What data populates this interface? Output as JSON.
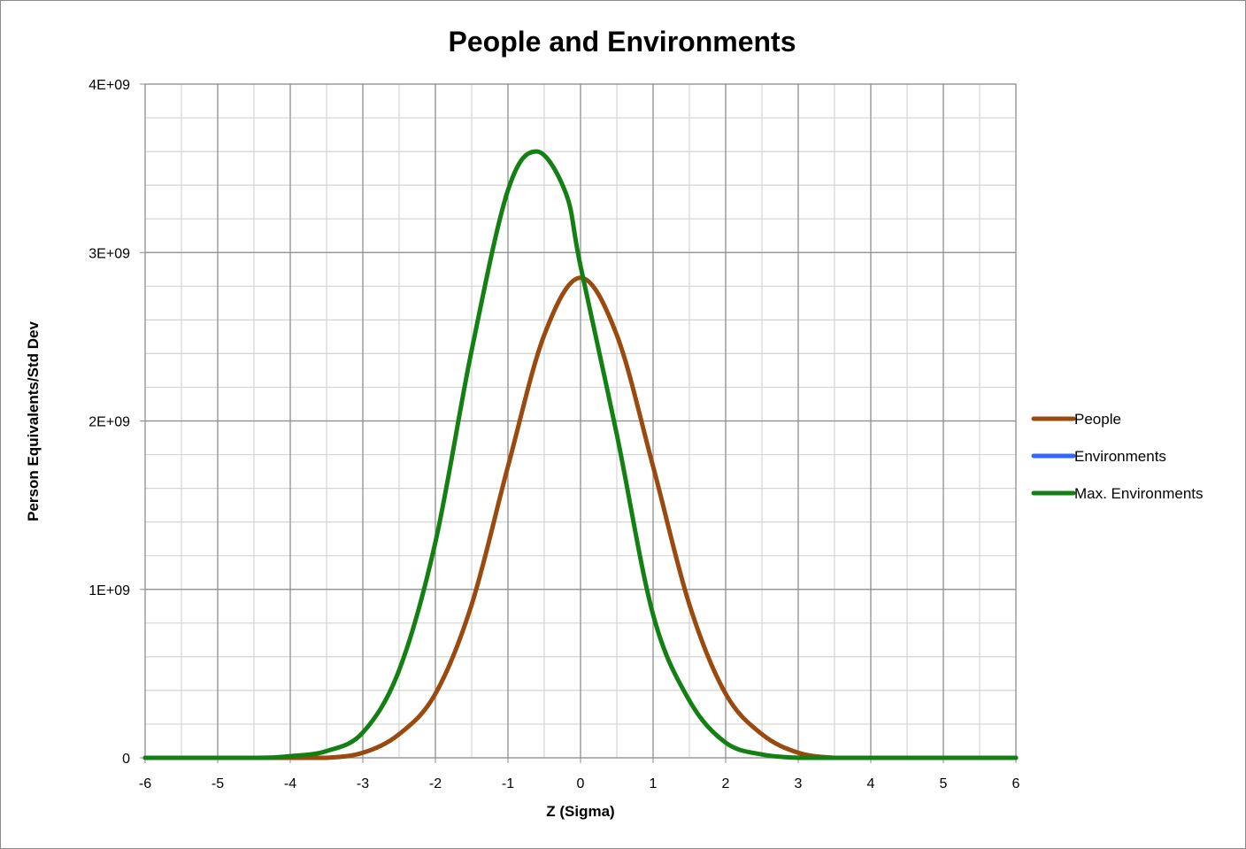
{
  "chart_data": {
    "type": "line",
    "title": "People and Environments",
    "xlabel": "Z (Sigma)",
    "ylabel": "Person Equivalents/Std Dev",
    "xlim": [
      -6,
      6
    ],
    "ylim": [
      0,
      4000000000
    ],
    "x_ticks": [
      -6,
      -5,
      -4,
      -3,
      -2,
      -1,
      0,
      1,
      2,
      3,
      4,
      5,
      6
    ],
    "x_tick_labels": [
      "-6",
      "-5",
      "-4",
      "-3",
      "-2",
      "-1",
      "0",
      "1",
      "2",
      "3",
      "4",
      "5",
      "6"
    ],
    "y_ticks": [
      0,
      1000000000,
      2000000000,
      3000000000,
      4000000000
    ],
    "y_tick_labels": [
      "0",
      "1E+09",
      "2E+09",
      "3E+09",
      "4E+09"
    ],
    "grid": true,
    "minor_grid": {
      "x_step": 0.5,
      "y_step": 200000000
    },
    "legend_position": "right",
    "series": [
      {
        "name": "People",
        "color": "#9a4a0f",
        "x": [
          -6,
          -5,
          -4.5,
          -4,
          -3.5,
          -3,
          -2.5,
          -2,
          -1.5,
          -1,
          -0.5,
          0,
          0.5,
          1,
          1.5,
          2,
          2.5,
          3,
          3.5,
          4,
          4.5,
          5,
          6
        ],
        "values": [
          0,
          0,
          0,
          0,
          0,
          30000000,
          140000000,
          380000000,
          910000000,
          1730000000,
          2510000000,
          2850000000,
          2510000000,
          1730000000,
          910000000,
          380000000,
          140000000,
          30000000,
          0,
          0,
          0,
          0,
          0
        ]
      },
      {
        "name": "Environments",
        "color": "#3366ff",
        "x": [],
        "values": []
      },
      {
        "name": "Max. Environments",
        "color": "#138013",
        "x": [
          -6,
          -4.5,
          -4,
          -3.5,
          -3,
          -2.5,
          -2,
          -1.5,
          -1,
          -0.6,
          -0.2,
          0,
          0.5,
          1,
          1.5,
          2,
          2.5,
          3,
          3.5,
          4,
          5,
          6
        ],
        "values": [
          0,
          0,
          10000000,
          40000000,
          150000000,
          520000000,
          1280000000,
          2420000000,
          3370000000,
          3600000000,
          3350000000,
          2920000000,
          1920000000,
          850000000,
          340000000,
          90000000,
          20000000,
          0,
          0,
          0,
          0,
          0
        ]
      }
    ]
  }
}
